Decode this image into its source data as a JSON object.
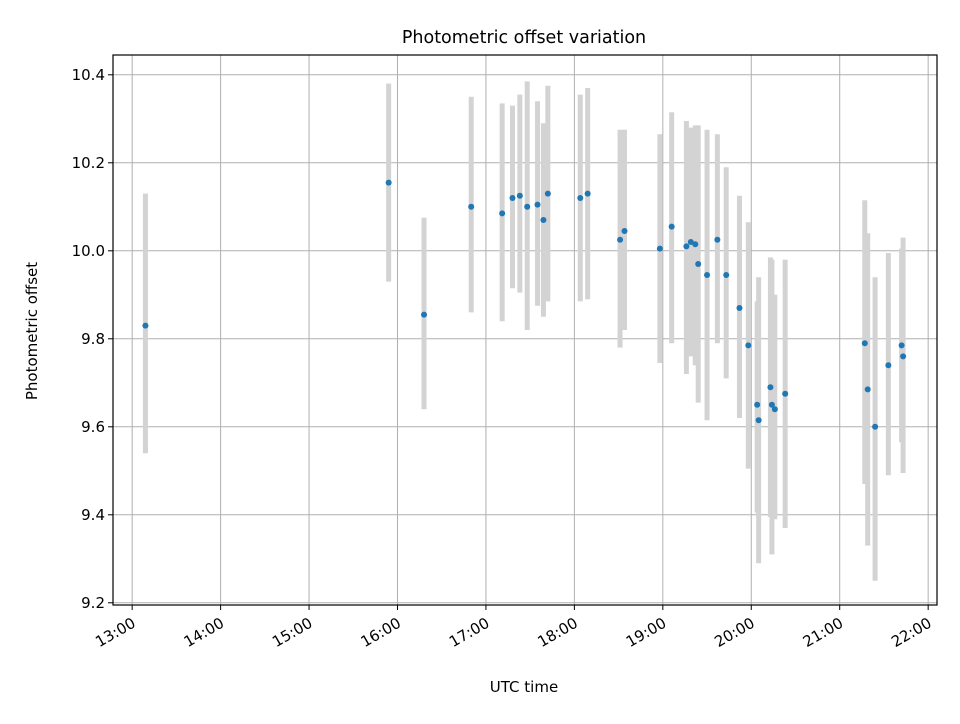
{
  "chart_data": {
    "type": "scatter",
    "title": "Photometric offset variation",
    "xlabel": "UTC time",
    "ylabel": "Photometric offset",
    "x_tick_labels": [
      "13:00",
      "14:00",
      "15:00",
      "16:00",
      "17:00",
      "18:00",
      "19:00",
      "20:00",
      "21:00",
      "22:00"
    ],
    "y_tick_labels": [
      "9.2",
      "9.4",
      "9.6",
      "9.8",
      "10.0",
      "10.2",
      "10.4"
    ],
    "xlim": [
      "12:47",
      "22:06"
    ],
    "ylim": [
      9.195,
      10.445
    ],
    "grid": true,
    "colors": {
      "marker": "#1f77b4",
      "errorbar": "#d3d3d3",
      "grid": "#b0b0b0"
    },
    "points": [
      {
        "x": "13:09",
        "y": 9.83,
        "low": 9.54,
        "high": 10.13
      },
      {
        "x": "15:54",
        "y": 10.155,
        "low": 9.93,
        "high": 10.38
      },
      {
        "x": "16:18",
        "y": 9.855,
        "low": 9.64,
        "high": 10.075
      },
      {
        "x": "16:50",
        "y": 10.1,
        "low": 9.86,
        "high": 10.35
      },
      {
        "x": "17:11",
        "y": 10.085,
        "low": 9.84,
        "high": 10.335
      },
      {
        "x": "17:18",
        "y": 10.12,
        "low": 9.915,
        "high": 10.33
      },
      {
        "x": "17:23",
        "y": 10.125,
        "low": 9.905,
        "high": 10.355
      },
      {
        "x": "17:28",
        "y": 10.1,
        "low": 9.82,
        "high": 10.385
      },
      {
        "x": "17:35",
        "y": 10.105,
        "low": 9.875,
        "high": 10.34
      },
      {
        "x": "17:39",
        "y": 10.07,
        "low": 9.85,
        "high": 10.29
      },
      {
        "x": "17:42",
        "y": 10.13,
        "low": 9.885,
        "high": 10.375
      },
      {
        "x": "18:04",
        "y": 10.12,
        "low": 9.885,
        "high": 10.355
      },
      {
        "x": "18:09",
        "y": 10.13,
        "low": 9.89,
        "high": 10.37
      },
      {
        "x": "18:31",
        "y": 10.025,
        "low": 9.78,
        "high": 10.275
      },
      {
        "x": "18:34",
        "y": 10.045,
        "low": 9.82,
        "high": 10.275
      },
      {
        "x": "18:58",
        "y": 10.005,
        "low": 9.745,
        "high": 10.265
      },
      {
        "x": "19:06",
        "y": 10.055,
        "low": 9.79,
        "high": 10.315
      },
      {
        "x": "19:16",
        "y": 10.01,
        "low": 9.72,
        "high": 10.295
      },
      {
        "x": "19:19",
        "y": 10.02,
        "low": 9.76,
        "high": 10.28
      },
      {
        "x": "19:22",
        "y": 10.015,
        "low": 9.74,
        "high": 10.285
      },
      {
        "x": "19:24",
        "y": 9.97,
        "low": 9.655,
        "high": 10.285
      },
      {
        "x": "19:30",
        "y": 9.945,
        "low": 9.615,
        "high": 10.275
      },
      {
        "x": "19:37",
        "y": 10.025,
        "low": 9.79,
        "high": 10.265
      },
      {
        "x": "19:43",
        "y": 9.945,
        "low": 9.71,
        "high": 10.19
      },
      {
        "x": "19:52",
        "y": 9.87,
        "low": 9.62,
        "high": 10.125
      },
      {
        "x": "19:58",
        "y": 9.785,
        "low": 9.505,
        "high": 10.065
      },
      {
        "x": "20:04",
        "y": 9.65,
        "low": 9.405,
        "high": 9.885
      },
      {
        "x": "20:05",
        "y": 9.615,
        "low": 9.29,
        "high": 9.94
      },
      {
        "x": "20:13",
        "y": 9.69,
        "low": 9.395,
        "high": 9.985
      },
      {
        "x": "20:14",
        "y": 9.65,
        "low": 9.31,
        "high": 9.98
      },
      {
        "x": "20:16",
        "y": 9.64,
        "low": 9.39,
        "high": 9.9
      },
      {
        "x": "20:23",
        "y": 9.675,
        "low": 9.37,
        "high": 9.98
      },
      {
        "x": "21:17",
        "y": 9.79,
        "low": 9.47,
        "high": 10.115
      },
      {
        "x": "21:19",
        "y": 9.685,
        "low": 9.33,
        "high": 10.04
      },
      {
        "x": "21:24",
        "y": 9.6,
        "low": 9.25,
        "high": 9.94
      },
      {
        "x": "21:33",
        "y": 9.74,
        "low": 9.49,
        "high": 9.995
      },
      {
        "x": "21:42",
        "y": 9.785,
        "low": 9.565,
        "high": 10.005
      },
      {
        "x": "21:43",
        "y": 9.76,
        "low": 9.495,
        "high": 10.03
      }
    ]
  }
}
